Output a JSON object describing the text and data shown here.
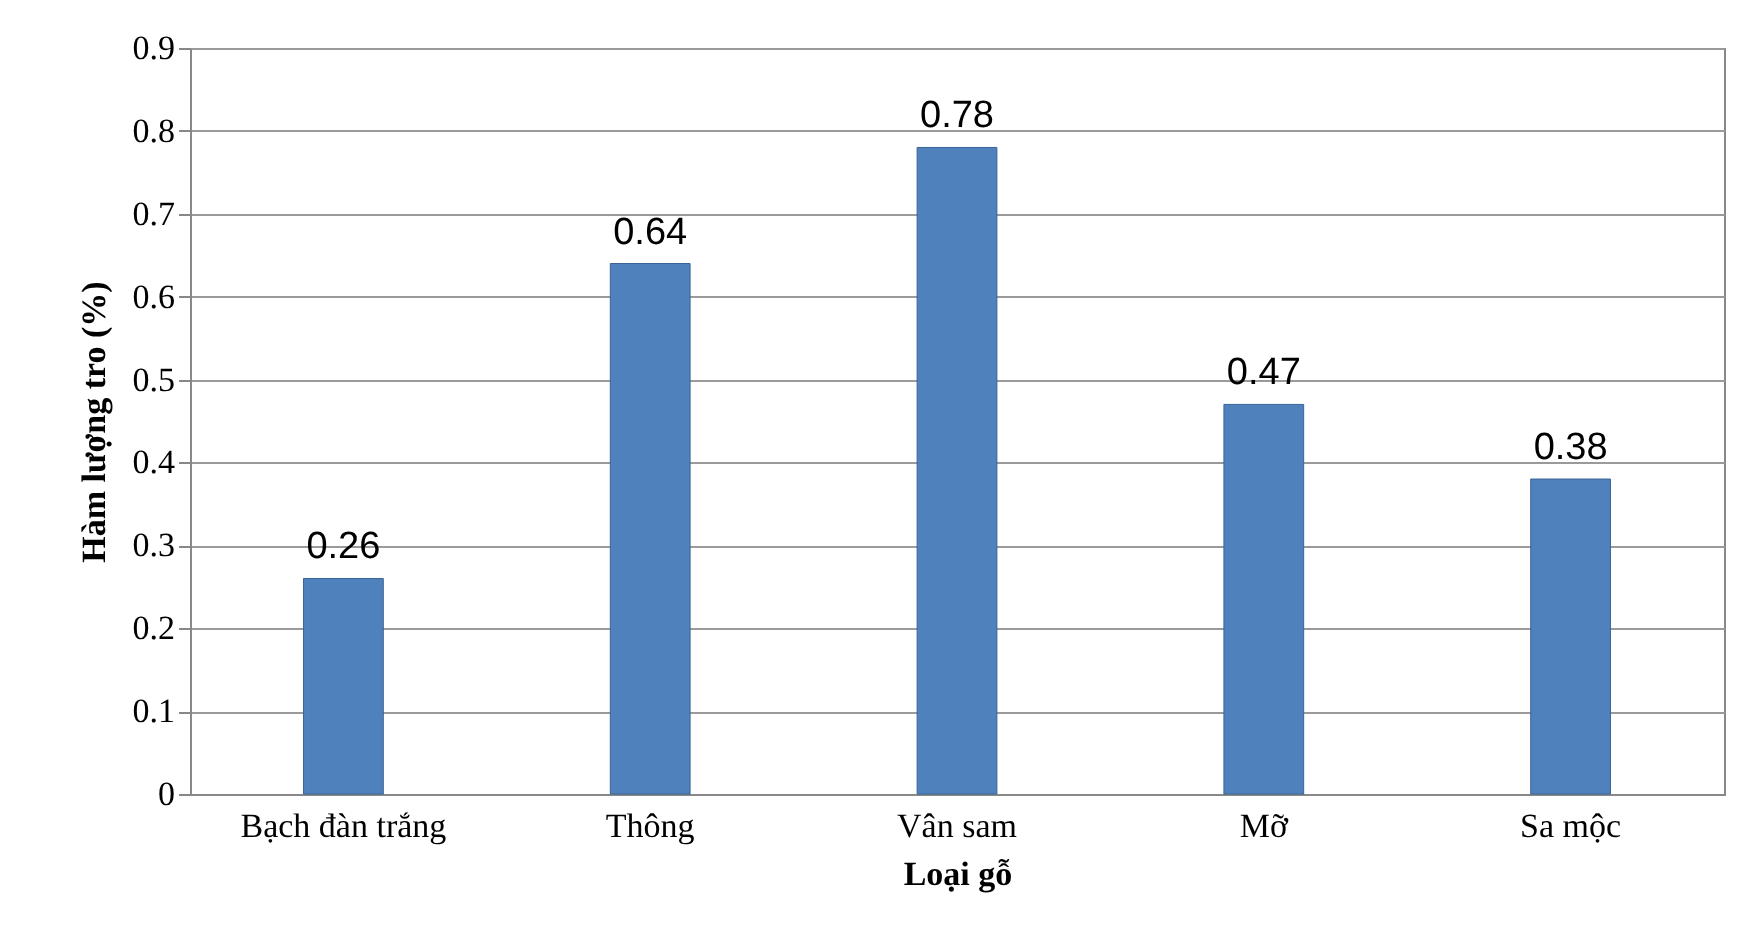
{
  "chart_data": {
    "type": "bar",
    "xlabel": "Loại gỗ",
    "ylabel": "Hàm lượng tro (%)",
    "categories": [
      "Bạch đàn trắng",
      "Thông",
      "Vân sam",
      "Mỡ",
      "Sa mộc"
    ],
    "values": [
      0.26,
      0.64,
      0.78,
      0.47,
      0.38
    ],
    "color": "#4f81bd",
    "ylim": [
      0,
      0.9
    ],
    "yticks": [
      0,
      0.1,
      0.2,
      0.3,
      0.4,
      0.5,
      0.6,
      0.7,
      0.8,
      0.9
    ],
    "grid": "y",
    "data_labels": true
  }
}
